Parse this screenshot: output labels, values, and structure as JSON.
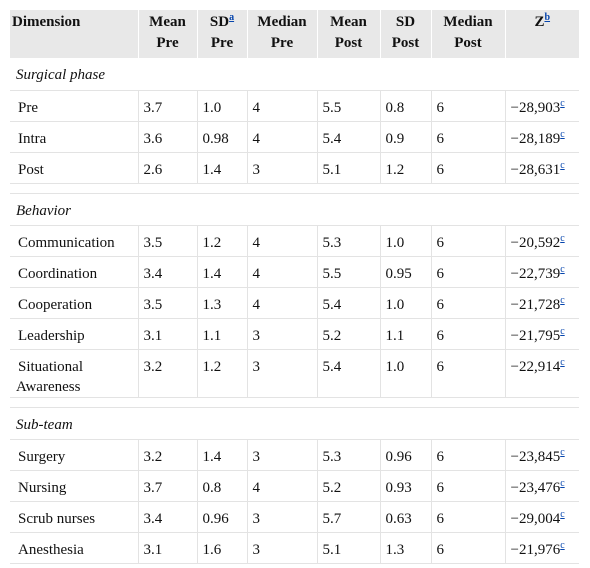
{
  "columns": [
    {
      "line1": "Dimension",
      "line2": ""
    },
    {
      "line1": "Mean",
      "line2": "Pre"
    },
    {
      "line1": "SD",
      "sup": "a",
      "line2": "Pre"
    },
    {
      "line1": "Median",
      "line2": "Pre"
    },
    {
      "line1": "Mean",
      "line2": "Post"
    },
    {
      "line1": "SD",
      "line2": "Post"
    },
    {
      "line1": "Median",
      "line2": "Post"
    },
    {
      "line1": "Z",
      "sup": "b",
      "line2": ""
    }
  ],
  "z_footnote": "c",
  "sections": [
    {
      "title": "Surgical phase",
      "rows": [
        {
          "label": "Pre",
          "mean_pre": "3.7",
          "sd_pre": "1.0",
          "median_pre": "4",
          "mean_post": "5.5",
          "sd_post": "0.8",
          "median_post": "6",
          "z": "−28,903"
        },
        {
          "label": "Intra",
          "mean_pre": "3.6",
          "sd_pre": "0.98",
          "median_pre": "4",
          "mean_post": "5.4",
          "sd_post": "0.9",
          "median_post": "6",
          "z": "−28,189"
        },
        {
          "label": "Post",
          "mean_pre": "2.6",
          "sd_pre": "1.4",
          "median_pre": "3",
          "mean_post": "5.1",
          "sd_post": "1.2",
          "median_post": "6",
          "z": "−28,631"
        }
      ]
    },
    {
      "title": "Behavior",
      "rows": [
        {
          "label": "Communication",
          "mean_pre": "3.5",
          "sd_pre": "1.2",
          "median_pre": "4",
          "mean_post": "5.3",
          "sd_post": "1.0",
          "median_post": "6",
          "z": "−20,592"
        },
        {
          "label": "Coordination",
          "mean_pre": "3.4",
          "sd_pre": "1.4",
          "median_pre": "4",
          "mean_post": "5.5",
          "sd_post": "0.95",
          "median_post": "6",
          "z": "−22,739"
        },
        {
          "label": "Cooperation",
          "mean_pre": "3.5",
          "sd_pre": "1.3",
          "median_pre": "4",
          "mean_post": "5.4",
          "sd_post": "1.0",
          "median_post": "6",
          "z": "−21,728"
        },
        {
          "label": "Leadership",
          "mean_pre": "3.1",
          "sd_pre": "1.1",
          "median_pre": "3",
          "mean_post": "5.2",
          "sd_post": "1.1",
          "median_post": "6",
          "z": "−21,795"
        },
        {
          "label_line1": "Situational",
          "label_line2": "Awareness",
          "mean_pre": "3.2",
          "sd_pre": "1.2",
          "median_pre": "3",
          "mean_post": "5.4",
          "sd_post": "1.0",
          "median_post": "6",
          "z": "−22,914"
        }
      ]
    },
    {
      "title": "Sub-team",
      "rows": [
        {
          "label": "Surgery",
          "mean_pre": "3.2",
          "sd_pre": "1.4",
          "median_pre": "3",
          "mean_post": "5.3",
          "sd_post": "0.96",
          "median_post": "6",
          "z": "−23,845"
        },
        {
          "label": "Nursing",
          "mean_pre": "3.7",
          "sd_pre": "0.8",
          "median_pre": "4",
          "mean_post": "5.2",
          "sd_post": "0.93",
          "median_post": "6",
          "z": "−23,476"
        },
        {
          "label": "Scrub nurses",
          "mean_pre": "3.4",
          "sd_pre": "0.96",
          "median_pre": "3",
          "mean_post": "5.7",
          "sd_post": "0.63",
          "median_post": "6",
          "z": "−29,004"
        },
        {
          "label": "Anesthesia",
          "mean_pre": "3.1",
          "sd_pre": "1.6",
          "median_pre": "3",
          "mean_post": "5.1",
          "sd_post": "1.3",
          "median_post": "6",
          "z": "−21,976"
        }
      ]
    }
  ]
}
